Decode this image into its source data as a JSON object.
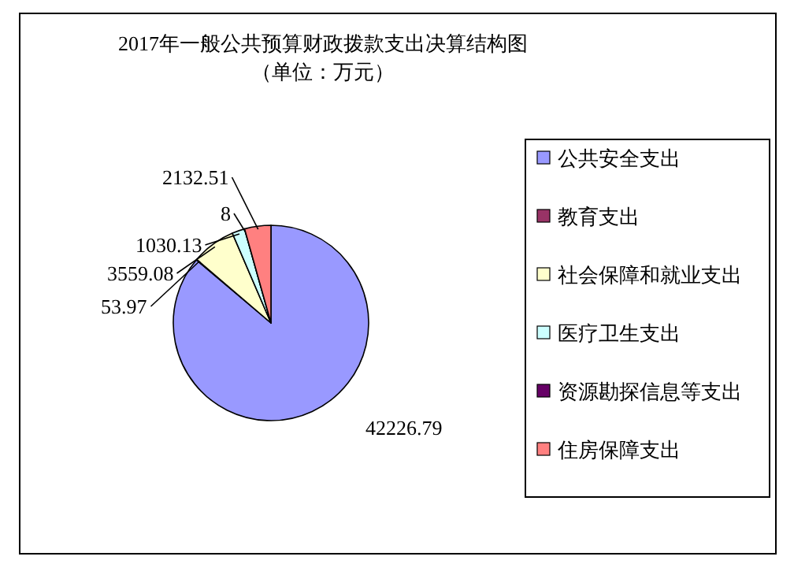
{
  "chart_data": {
    "type": "pie",
    "title": "2017年一般公共预算财政拨款支出决算结构图",
    "subtitle": "（单位：万元）",
    "categories": [
      "公共安全支出",
      "教育支出",
      "社会保障和就业支出",
      "医疗卫生支出",
      "资源勘探信息等支出",
      "住房保障支出"
    ],
    "values": [
      42226.79,
      53.97,
      3559.08,
      1030.13,
      8,
      2132.51
    ],
    "colors": [
      "#9999ff",
      "#993366",
      "#ffffcc",
      "#ccffff",
      "#660066",
      "#ff8080"
    ],
    "data_labels": true,
    "legend": "right"
  }
}
